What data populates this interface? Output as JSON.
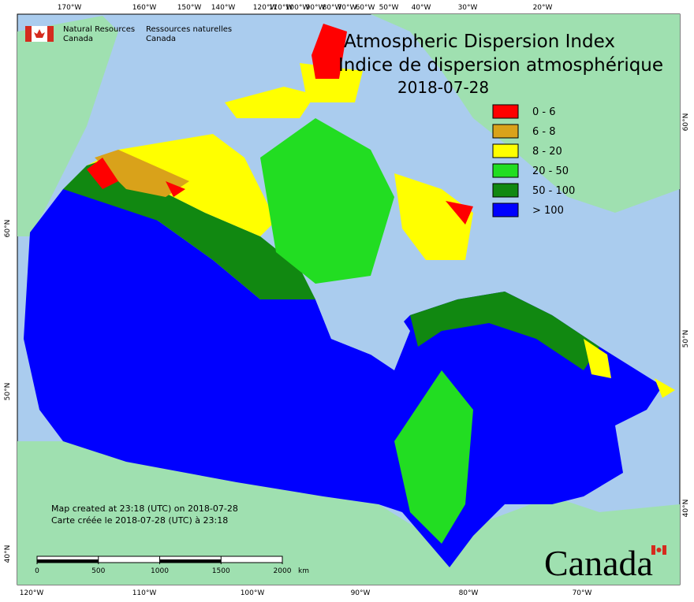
{
  "header": {
    "agency_en": [
      "Natural Resources",
      "Canada"
    ],
    "agency_fr": [
      "Ressources naturelles",
      "Canada"
    ]
  },
  "title": "Atmospheric Dispersion Index",
  "title_fr": "Indice de dispersion atmosphérique",
  "date": "2018-07-28",
  "legend": [
    {
      "label": "0 - 6",
      "color": "#ff0000"
    },
    {
      "label": "6 - 8",
      "color": "#d9a21a"
    },
    {
      "label": "8 - 20",
      "color": "#ffff00"
    },
    {
      "label": "20 - 50",
      "color": "#22dd22"
    },
    {
      "label": "50 - 100",
      "color": "#118811"
    },
    {
      "label": "> 100",
      "color": "#0000ff"
    }
  ],
  "graticule": {
    "top": [
      "170°W",
      "160°W",
      "150°W",
      "140°W",
      "120°W",
      "110°W",
      "100°W",
      "90°W",
      "80°W",
      "70°W",
      "60°W",
      "50°W",
      "40°W",
      "30°W",
      "20°W"
    ],
    "bottom": [
      "120°W",
      "110°W",
      "100°W",
      "90°W",
      "80°W",
      "70°W"
    ],
    "left": [
      "60°N",
      "50°N",
      "40°N"
    ],
    "right": [
      "60°N",
      "50°N",
      "40°N"
    ]
  },
  "notes": [
    "Map created at 23:18 (UTC) on 2018-07-28",
    "Carte créée le 2018-07-28 (UTC) à 23:18"
  ],
  "scale": {
    "ticks": [
      0,
      500,
      1000,
      1500,
      2000
    ],
    "unit": "km"
  },
  "wordmark": "Canada"
}
